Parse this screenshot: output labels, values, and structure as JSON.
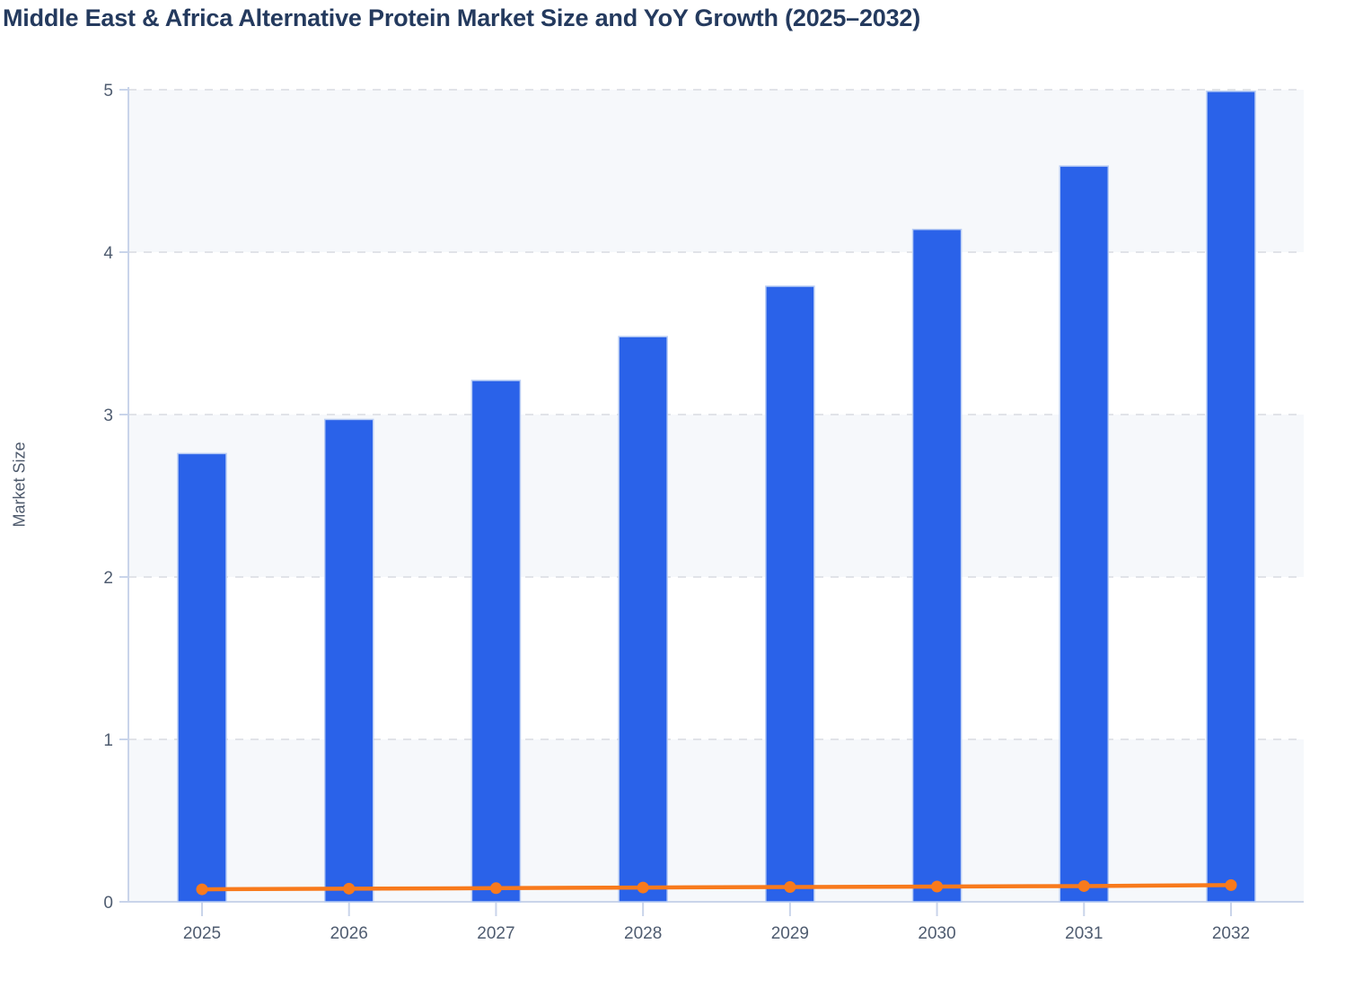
{
  "title": "Middle East & Africa Alternative Protein Market Size and YoY Growth (2025–2032)",
  "chart_data": {
    "type": "combo-bar-line",
    "title": "Middle East & Africa Alternative Protein Market Size and YoY Growth (2025–2032)",
    "xlabel": "",
    "ylabel": "Market Size",
    "categories": [
      "2025",
      "2026",
      "2027",
      "2028",
      "2029",
      "2030",
      "2031",
      "2032"
    ],
    "series": [
      {
        "name": "Market Size",
        "type": "bar",
        "color": "#2a62e9",
        "border_color": "#b9cdf4",
        "values": [
          2.76,
          2.97,
          3.21,
          3.48,
          3.79,
          4.14,
          4.53,
          4.99
        ]
      },
      {
        "name": "YoY Growth",
        "type": "line",
        "color": "#f87a1c",
        "values": [
          0.077,
          0.081,
          0.084,
          0.088,
          0.091,
          0.094,
          0.097,
          0.103
        ]
      }
    ],
    "ylim": [
      0,
      5
    ],
    "ytick_labels": [
      "0",
      "1",
      "2",
      "3",
      "4",
      "5"
    ],
    "grid": "horizontal-dashed",
    "legend": "none",
    "background_bands": "alternating-light-rows",
    "colors": {
      "band_fill": "#f6f8fb",
      "gridline": "#e1e3e8",
      "axis_line": "#c9d4ea",
      "tick_label": "#4f5c70",
      "title_text": "#243a5e"
    }
  }
}
